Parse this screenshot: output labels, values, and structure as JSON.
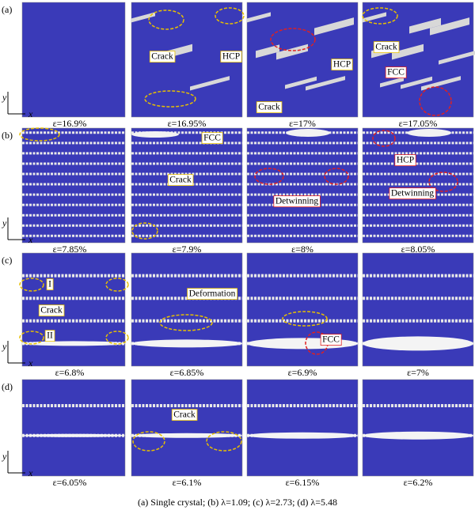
{
  "axes": {
    "x": "x",
    "y": "y"
  },
  "rows": [
    {
      "label": "(a)",
      "panels": [
        {
          "strain": "ε=16.9%"
        },
        {
          "strain": "ε=16.95%"
        },
        {
          "strain": "ε=17%"
        },
        {
          "strain": "ε=17.05%"
        }
      ],
      "annotations": [
        "Crack",
        "HCP",
        "HCP",
        "Crack",
        "Crack",
        "FCC"
      ]
    },
    {
      "label": "(b)",
      "panels": [
        {
          "strain": "ε=7.85%"
        },
        {
          "strain": "ε=7.9%"
        },
        {
          "strain": "ε=8%"
        },
        {
          "strain": "ε=8.05%"
        }
      ],
      "annotations": [
        "FCC",
        "Crack",
        "Detwinning",
        "HCP",
        "Detwinning"
      ]
    },
    {
      "label": "(c)",
      "panels": [
        {
          "strain": "ε=6.8%"
        },
        {
          "strain": "ε=6.85%"
        },
        {
          "strain": "ε=6.9%"
        },
        {
          "strain": "ε=7%"
        }
      ],
      "annotations": [
        "I",
        "Crack",
        "II",
        "Deformation",
        "FCC"
      ]
    },
    {
      "label": "(d)",
      "panels": [
        {
          "strain": "ε=6.05%"
        },
        {
          "strain": "ε=6.1%"
        },
        {
          "strain": "ε=6.15%"
        },
        {
          "strain": "ε=6.2%"
        }
      ],
      "annotations": [
        "Crack"
      ]
    }
  ],
  "caption": "(a) Single crystal; (b) λ=1.09; (c) λ=2.73; (d) λ=5.48"
}
